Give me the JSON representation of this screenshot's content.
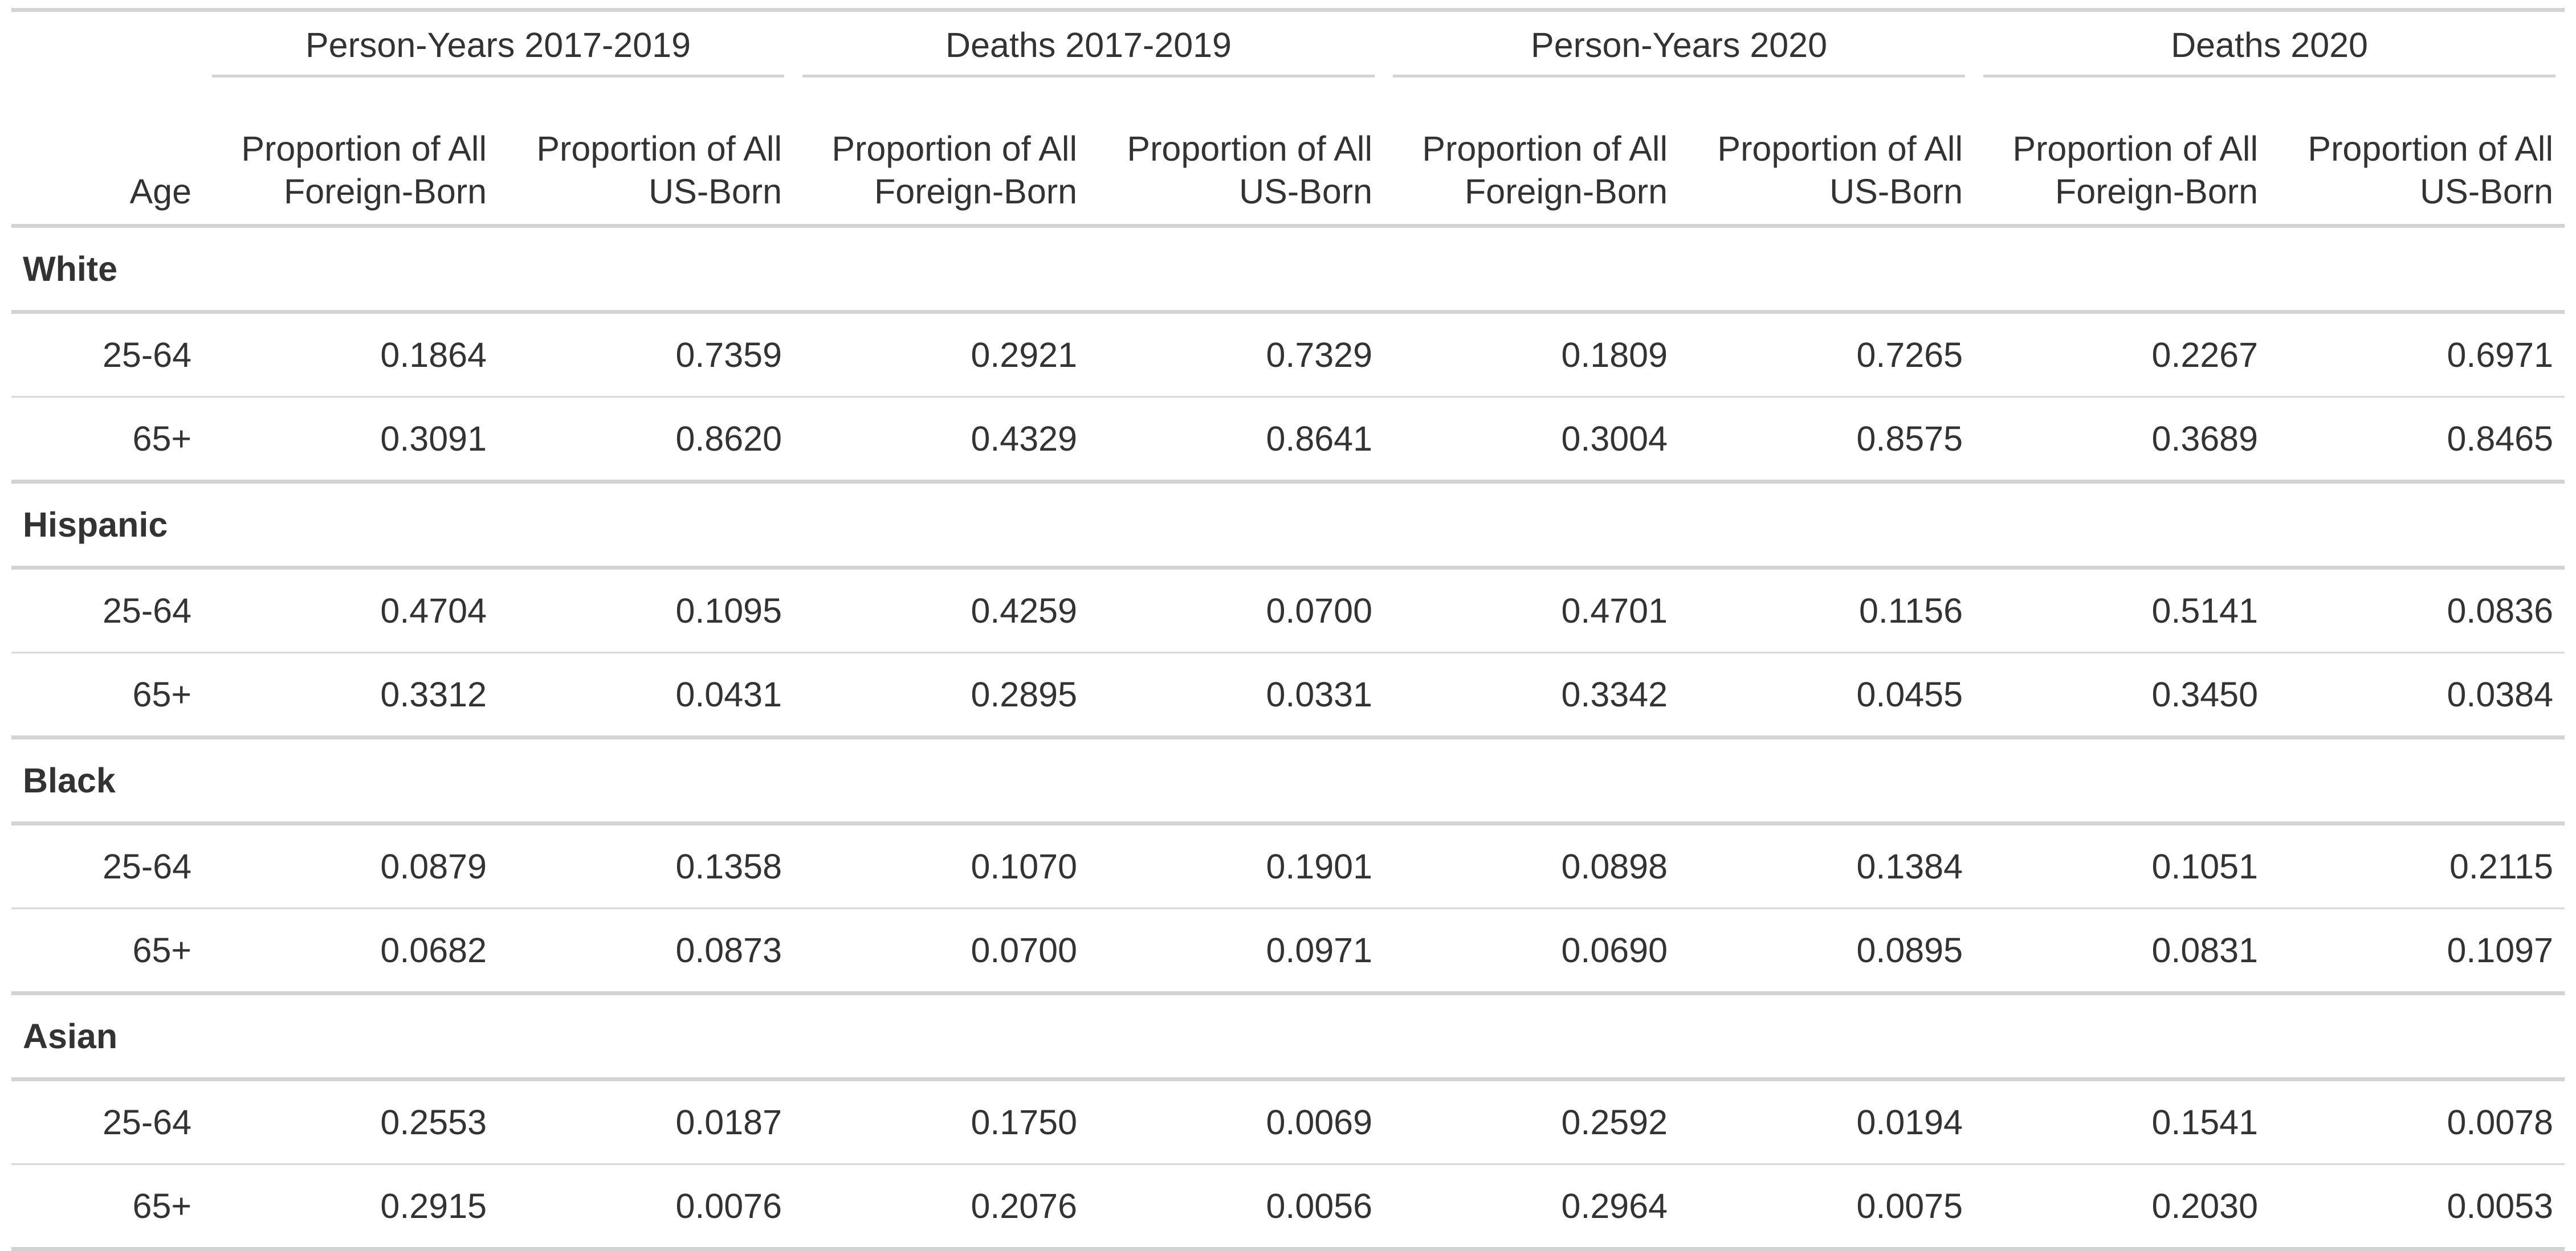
{
  "table": {
    "stub_header": "Age",
    "spanners": [
      "Person-Years 2017-2019",
      "Deaths 2017-2019",
      "Person-Years 2020",
      "Deaths 2020"
    ],
    "column_headers": [
      [
        "Proportion of All",
        "Foreign-Born"
      ],
      [
        "Proportion of All",
        "US-Born"
      ],
      [
        "Proportion of All",
        "Foreign-Born"
      ],
      [
        "Proportion of All",
        "US-Born"
      ],
      [
        "Proportion of All",
        "Foreign-Born"
      ],
      [
        "Proportion of All",
        "US-Born"
      ],
      [
        "Proportion of All",
        "Foreign-Born"
      ],
      [
        "Proportion of All",
        "US-Born"
      ]
    ],
    "groups": [
      {
        "name": "White",
        "rows": [
          {
            "age": "25-64",
            "values": [
              "0.1864",
              "0.7359",
              "0.2921",
              "0.7329",
              "0.1809",
              "0.7265",
              "0.2267",
              "0.6971"
            ]
          },
          {
            "age": "65+",
            "values": [
              "0.3091",
              "0.8620",
              "0.4329",
              "0.8641",
              "0.3004",
              "0.8575",
              "0.3689",
              "0.8465"
            ]
          }
        ]
      },
      {
        "name": "Hispanic",
        "rows": [
          {
            "age": "25-64",
            "values": [
              "0.4704",
              "0.1095",
              "0.4259",
              "0.0700",
              "0.4701",
              "0.1156",
              "0.5141",
              "0.0836"
            ]
          },
          {
            "age": "65+",
            "values": [
              "0.3312",
              "0.0431",
              "0.2895",
              "0.0331",
              "0.3342",
              "0.0455",
              "0.3450",
              "0.0384"
            ]
          }
        ]
      },
      {
        "name": "Black",
        "rows": [
          {
            "age": "25-64",
            "values": [
              "0.0879",
              "0.1358",
              "0.1070",
              "0.1901",
              "0.0898",
              "0.1384",
              "0.1051",
              "0.2115"
            ]
          },
          {
            "age": "65+",
            "values": [
              "0.0682",
              "0.0873",
              "0.0700",
              "0.0971",
              "0.0690",
              "0.0895",
              "0.0831",
              "0.1097"
            ]
          }
        ]
      },
      {
        "name": "Asian",
        "rows": [
          {
            "age": "25-64",
            "values": [
              "0.2553",
              "0.0187",
              "0.1750",
              "0.0069",
              "0.2592",
              "0.0194",
              "0.1541",
              "0.0078"
            ]
          },
          {
            "age": "65+",
            "values": [
              "0.2915",
              "0.0076",
              "0.2076",
              "0.0056",
              "0.2964",
              "0.0075",
              "0.2030",
              "0.0053"
            ]
          }
        ]
      }
    ]
  }
}
